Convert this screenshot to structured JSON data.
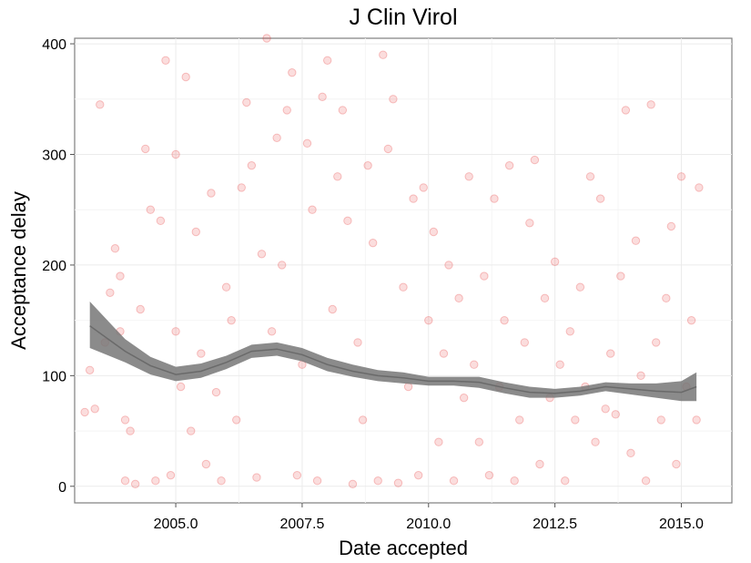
{
  "chart_data": {
    "type": "scatter",
    "title": "J Clin Virol",
    "xlabel": "Date accepted",
    "ylabel": "Acceptance delay",
    "xlim": [
      2003.0,
      2016.0
    ],
    "ylim": [
      -15,
      405
    ],
    "x_ticks": [
      2005.0,
      2007.5,
      2010.0,
      2012.5,
      2015.0
    ],
    "x_tick_labels": [
      "2005.0",
      "2007.5",
      "2010.0",
      "2012.5",
      "2015.0"
    ],
    "y_ticks": [
      0,
      100,
      200,
      300,
      400
    ],
    "y_tick_labels": [
      "0",
      "100",
      "200",
      "300",
      "400"
    ],
    "grid": true,
    "point_color": "#e41a1c",
    "smooth_color": "#777777",
    "smooth": {
      "x": [
        2003.3,
        2004.0,
        2004.5,
        2005.0,
        2005.5,
        2006.0,
        2006.5,
        2007.0,
        2007.5,
        2008.0,
        2008.5,
        2009.0,
        2009.5,
        2010.0,
        2010.5,
        2011.0,
        2011.5,
        2012.0,
        2012.5,
        2013.0,
        2013.5,
        2014.0,
        2014.5,
        2015.0,
        2015.3
      ],
      "y": [
        145,
        122,
        109,
        101,
        104,
        112,
        122,
        124,
        119,
        110,
        104,
        100,
        98,
        95,
        95,
        94,
        89,
        85,
        84,
        86,
        90,
        88,
        86,
        85,
        90
      ],
      "lower": [
        125,
        112,
        101,
        95,
        98,
        106,
        116,
        118,
        113,
        104,
        99,
        95,
        93,
        91,
        91,
        89,
        84,
        80,
        80,
        82,
        86,
        83,
        80,
        77,
        77
      ],
      "upper": [
        167,
        133,
        117,
        108,
        111,
        118,
        128,
        130,
        125,
        116,
        110,
        105,
        103,
        99,
        99,
        99,
        94,
        90,
        88,
        90,
        94,
        93,
        93,
        95,
        103
      ]
    },
    "points": [
      [
        2003.5,
        345
      ],
      [
        2003.3,
        105
      ],
      [
        2003.4,
        70
      ],
      [
        2003.2,
        67
      ],
      [
        2003.6,
        130
      ],
      [
        2003.7,
        175
      ],
      [
        2003.8,
        215
      ],
      [
        2003.9,
        190
      ],
      [
        2004.0,
        60
      ],
      [
        2004.0,
        5
      ],
      [
        2003.9,
        140
      ],
      [
        2004.1,
        50
      ],
      [
        2004.2,
        2
      ],
      [
        2004.3,
        160
      ],
      [
        2004.4,
        305
      ],
      [
        2004.5,
        250
      ],
      [
        2004.6,
        5
      ],
      [
        2004.7,
        240
      ],
      [
        2004.8,
        385
      ],
      [
        2004.9,
        10
      ],
      [
        2005.0,
        300
      ],
      [
        2005.0,
        140
      ],
      [
        2005.1,
        90
      ],
      [
        2005.2,
        370
      ],
      [
        2005.3,
        50
      ],
      [
        2005.4,
        230
      ],
      [
        2005.5,
        120
      ],
      [
        2005.6,
        20
      ],
      [
        2005.7,
        265
      ],
      [
        2005.8,
        85
      ],
      [
        2005.9,
        5
      ],
      [
        2006.0,
        180
      ],
      [
        2006.1,
        150
      ],
      [
        2006.2,
        60
      ],
      [
        2006.3,
        270
      ],
      [
        2006.4,
        347
      ],
      [
        2006.5,
        290
      ],
      [
        2006.6,
        8
      ],
      [
        2006.7,
        210
      ],
      [
        2006.8,
        405
      ],
      [
        2006.9,
        140
      ],
      [
        2007.0,
        315
      ],
      [
        2007.1,
        200
      ],
      [
        2007.2,
        340
      ],
      [
        2007.3,
        374
      ],
      [
        2007.4,
        10
      ],
      [
        2007.5,
        110
      ],
      [
        2007.6,
        310
      ],
      [
        2007.7,
        250
      ],
      [
        2007.8,
        5
      ],
      [
        2007.9,
        352
      ],
      [
        2008.0,
        385
      ],
      [
        2008.1,
        160
      ],
      [
        2008.2,
        280
      ],
      [
        2008.3,
        340
      ],
      [
        2008.4,
        240
      ],
      [
        2008.5,
        2
      ],
      [
        2008.6,
        130
      ],
      [
        2008.7,
        60
      ],
      [
        2008.8,
        290
      ],
      [
        2008.9,
        220
      ],
      [
        2009.0,
        5
      ],
      [
        2009.1,
        390
      ],
      [
        2009.2,
        305
      ],
      [
        2009.3,
        350
      ],
      [
        2009.4,
        3
      ],
      [
        2009.5,
        180
      ],
      [
        2009.6,
        90
      ],
      [
        2009.7,
        260
      ],
      [
        2009.8,
        10
      ],
      [
        2009.9,
        270
      ],
      [
        2010.0,
        150
      ],
      [
        2010.1,
        230
      ],
      [
        2010.2,
        40
      ],
      [
        2010.3,
        120
      ],
      [
        2010.4,
        200
      ],
      [
        2010.5,
        5
      ],
      [
        2010.6,
        170
      ],
      [
        2010.7,
        80
      ],
      [
        2010.8,
        280
      ],
      [
        2010.9,
        110
      ],
      [
        2011.0,
        40
      ],
      [
        2011.1,
        190
      ],
      [
        2011.2,
        10
      ],
      [
        2011.3,
        260
      ],
      [
        2011.4,
        90
      ],
      [
        2011.5,
        150
      ],
      [
        2011.6,
        290
      ],
      [
        2011.7,
        5
      ],
      [
        2011.8,
        60
      ],
      [
        2011.9,
        130
      ],
      [
        2012.0,
        238
      ],
      [
        2012.1,
        295
      ],
      [
        2012.2,
        20
      ],
      [
        2012.3,
        170
      ],
      [
        2012.4,
        80
      ],
      [
        2012.5,
        203
      ],
      [
        2012.6,
        110
      ],
      [
        2012.7,
        5
      ],
      [
        2012.8,
        140
      ],
      [
        2012.9,
        60
      ],
      [
        2013.0,
        180
      ],
      [
        2013.1,
        90
      ],
      [
        2013.2,
        280
      ],
      [
        2013.3,
        40
      ],
      [
        2013.4,
        260
      ],
      [
        2013.5,
        70
      ],
      [
        2013.6,
        120
      ],
      [
        2013.7,
        65
      ],
      [
        2013.8,
        190
      ],
      [
        2013.9,
        340
      ],
      [
        2014.0,
        30
      ],
      [
        2014.1,
        222
      ],
      [
        2014.2,
        100
      ],
      [
        2014.3,
        5
      ],
      [
        2014.4,
        345
      ],
      [
        2014.5,
        130
      ],
      [
        2014.6,
        60
      ],
      [
        2014.7,
        170
      ],
      [
        2014.8,
        235
      ],
      [
        2014.9,
        20
      ],
      [
        2015.0,
        280
      ],
      [
        2015.1,
        90
      ],
      [
        2015.2,
        150
      ],
      [
        2015.3,
        60
      ],
      [
        2015.35,
        270
      ]
    ]
  }
}
